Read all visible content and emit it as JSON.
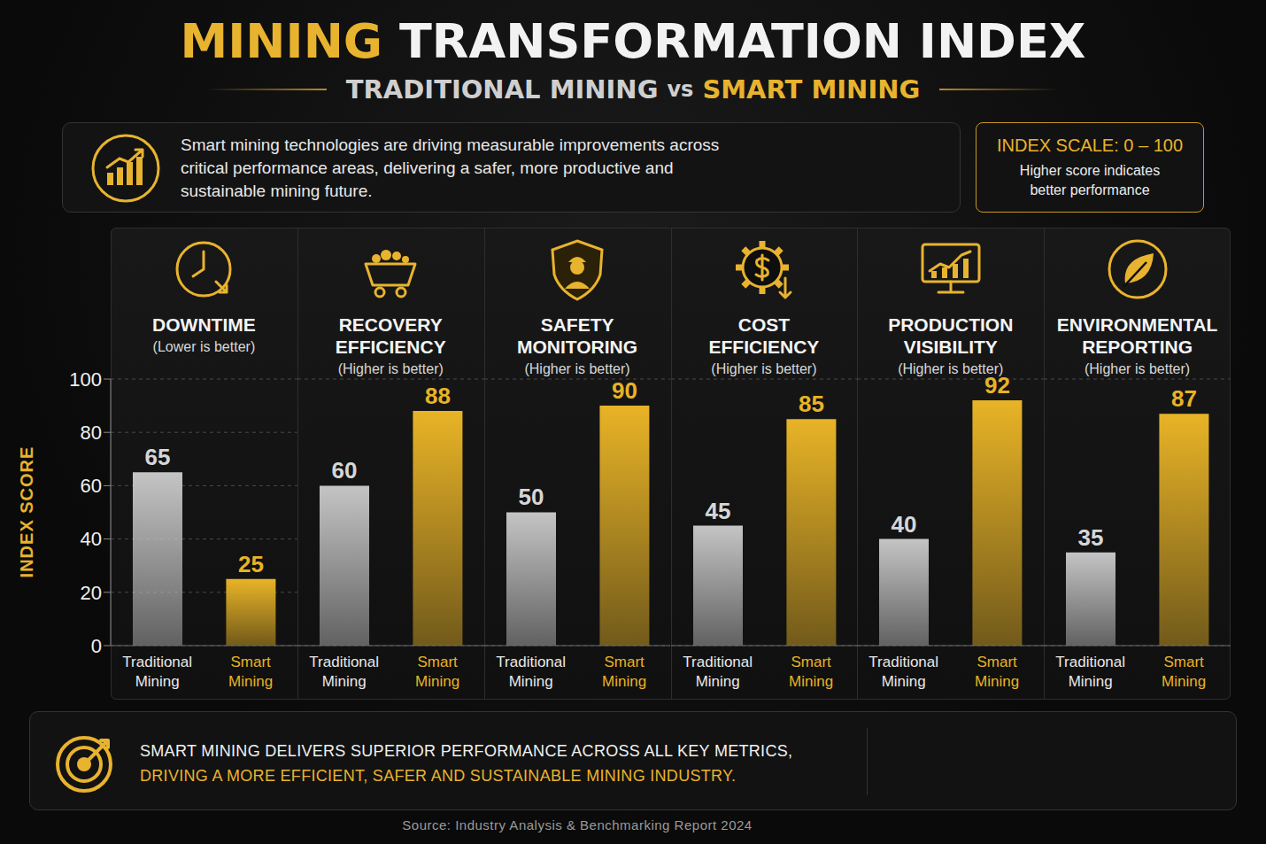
{
  "title": [
    "MINING",
    "TRANSFORMATION INDEX"
  ],
  "subtitle": [
    "TRADITIONAL MINING",
    "vs",
    "SMART MINING"
  ],
  "description": [
    "Smart mining technologies are driving measurable improvements across",
    "critical performance areas, delivering a safer, more productive and",
    "sustainable mining future."
  ],
  "scale_note": {
    "title": "INDEX SCALE: 0 – 100",
    "text": "Higher score indicates better performance"
  },
  "footer": [
    "SMART MINING DELIVERS SUPERIOR PERFORMANCE ACROSS ALL KEY METRICS,",
    "DRIVING A MORE EFFICIENT, SAFER AND SUSTAINABLE MINING INDUSTRY."
  ],
  "source": "Source: Industry Analysis & Benchmarking Report 2024",
  "chart_data": [
    {
      "type": "bar",
      "title": "DOWNTIME",
      "subtitle": "(Lower is better)",
      "ylabel": "INDEX SCORE",
      "categories": [
        "Traditional Mining",
        "Smart Mining"
      ],
      "values": [
        65,
        25
      ],
      "colors": [
        "#c4c4c4",
        "#e8b326"
      ],
      "ylim": [
        0,
        100
      ],
      "yticks": [
        0,
        20,
        40,
        60,
        80,
        100
      ],
      "grid": true,
      "data_labels": true,
      "tick_labels": true
    },
    {
      "type": "bar",
      "title": "RECOVERY EFFICIENCY",
      "subtitle": "(Higher is better)",
      "categories": [
        "Traditional Mining",
        "Smart Mining"
      ],
      "values": [
        60,
        88
      ],
      "colors": [
        "#c4c4c4",
        "#e8b326"
      ],
      "ylim": [
        0,
        100
      ],
      "yticks": [
        0,
        20,
        40,
        60,
        80,
        100
      ],
      "grid": true,
      "data_labels": true,
      "tick_labels": "x"
    },
    {
      "type": "bar",
      "title": "SAFETY MONITORING",
      "subtitle": "(Higher is better)",
      "categories": [
        "Traditional Mining",
        "Smart Mining"
      ],
      "values": [
        50,
        90
      ],
      "colors": [
        "#c4c4c4",
        "#e8b326"
      ],
      "ylim": [
        0,
        100
      ],
      "yticks": [
        0,
        20,
        40,
        60,
        80,
        100
      ],
      "grid": true,
      "data_labels": true,
      "tick_labels": "x"
    },
    {
      "type": "bar",
      "title": "COST EFFICIENCY",
      "subtitle": "(Higher is better)",
      "categories": [
        "Traditional Mining",
        "Smart Mining"
      ],
      "values": [
        45,
        85
      ],
      "colors": [
        "#c4c4c4",
        "#e8b326"
      ],
      "ylim": [
        0,
        100
      ],
      "yticks": [
        0,
        20,
        40,
        60,
        80,
        100
      ],
      "grid": true,
      "data_labels": true,
      "tick_labels": "x"
    },
    {
      "type": "bar",
      "title": "PRODUCTION VISIBILITY",
      "subtitle": "(Higher is better)",
      "categories": [
        "Traditional Mining",
        "Smart Mining"
      ],
      "values": [
        40,
        92
      ],
      "colors": [
        "#c4c4c4",
        "#e8b326"
      ],
      "ylim": [
        0,
        100
      ],
      "yticks": [
        0,
        20,
        40,
        60,
        80,
        100
      ],
      "grid": true,
      "data_labels": true,
      "tick_labels": "x"
    },
    {
      "type": "bar",
      "title": "ENVIRONMENTAL REPORTING",
      "subtitle": "(Higher is better)",
      "categories": [
        "Traditional Mining",
        "Smart Mining"
      ],
      "values": [
        35,
        87
      ],
      "colors": [
        "#c4c4c4",
        "#e8b326"
      ],
      "ylim": [
        0,
        100
      ],
      "yticks": [
        0,
        20,
        40,
        60,
        80,
        100
      ],
      "grid": true,
      "data_labels": true,
      "tick_labels": "x"
    }
  ]
}
